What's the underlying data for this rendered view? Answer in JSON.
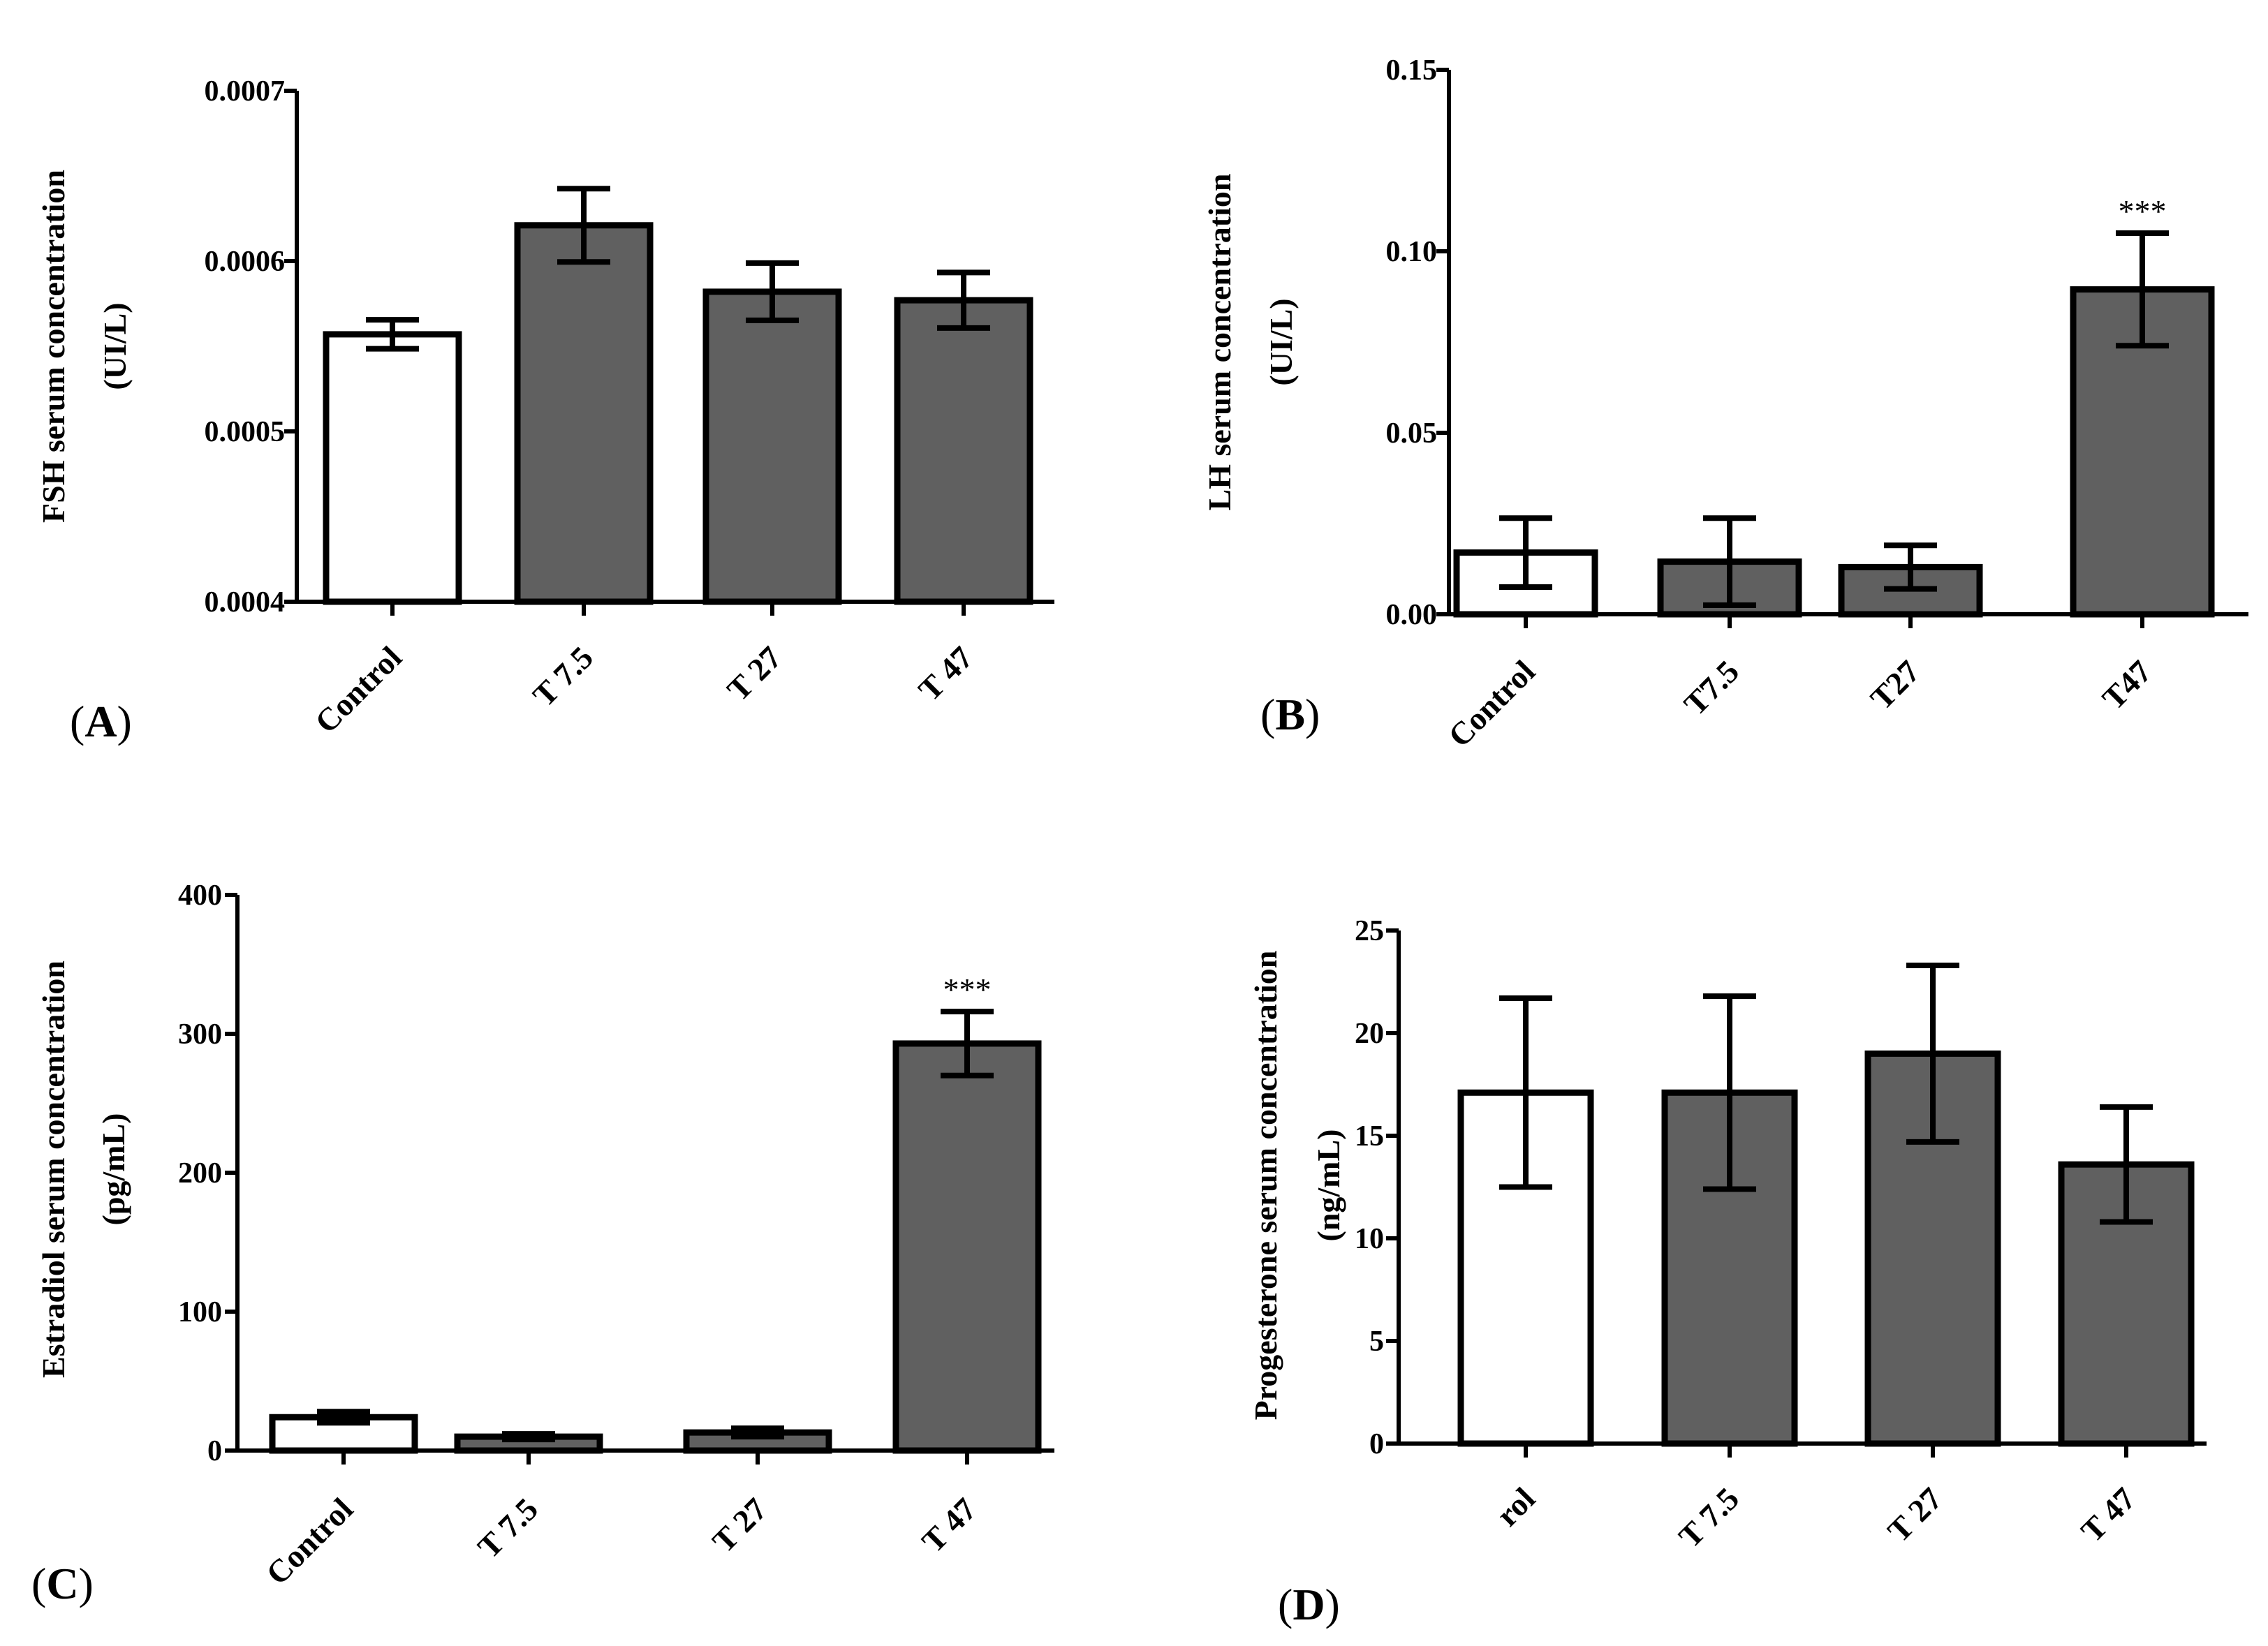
{
  "figure_colors": {
    "control_fill": "#ffffff",
    "treated_fill": "#606060",
    "stroke": "#000000"
  },
  "chart_data": [
    {
      "panel": "(A)",
      "panel_paren_open": "(",
      "panel_letter": "A",
      "panel_paren_close": ")",
      "type": "bar",
      "ylabel": "FSH serum concentration",
      "ylabel_units": "(UI/L)",
      "categories": [
        "Control",
        "T 7.5",
        "T 27",
        "T 47"
      ],
      "values": [
        0.000557,
        0.000621,
        0.000582,
        0.000577
      ],
      "errors": [
        8.5e-06,
        2.15e-05,
        1.68e-05,
        1.63e-05
      ],
      "ylim": [
        0.0004,
        0.0007
      ],
      "yticks": [
        0.0004,
        0.0005,
        0.0006,
        0.0007
      ],
      "ytick_labels": [
        "0.0004",
        "0.0005",
        "0.0006",
        "0.0007"
      ],
      "significance": [
        "",
        "",
        "",
        ""
      ]
    },
    {
      "panel": "(B)",
      "panel_paren_open": "(",
      "panel_letter": "B",
      "panel_paren_close": ")",
      "type": "bar",
      "ylabel": "LH serum concentration",
      "ylabel_units": "(UI/L)",
      "categories": [
        "Control",
        "T7.5",
        "T27",
        "T47"
      ],
      "values": [
        0.017,
        0.0145,
        0.013,
        0.0895
      ],
      "errors": [
        0.0095,
        0.012,
        0.006,
        0.0155
      ],
      "ylim": [
        0,
        0.15
      ],
      "yticks": [
        0,
        0.05,
        0.1,
        0.15
      ],
      "ytick_labels": [
        "0.00",
        "0.05",
        "0.10",
        "0.15"
      ],
      "significance": [
        "",
        "",
        "",
        "***"
      ]
    },
    {
      "panel": "(C)",
      "panel_paren_open": "(",
      "panel_letter": "C",
      "panel_paren_close": ")",
      "type": "bar",
      "ylabel": "Estradiol serum concentration",
      "ylabel_units": "(pg/mL)",
      "categories": [
        "Control",
        "T 7.5",
        "T 27",
        "T 47"
      ],
      "values": [
        24,
        10,
        13,
        293
      ],
      "errors": [
        4,
        2,
        3,
        23
      ],
      "ylim": [
        0,
        400
      ],
      "yticks": [
        0,
        100,
        200,
        300,
        400
      ],
      "ytick_labels": [
        "0",
        "100",
        "200",
        "300",
        "400"
      ],
      "significance": [
        "",
        "",
        "",
        "***"
      ]
    },
    {
      "panel": "(D)",
      "panel_paren_open": "(",
      "panel_letter": "D",
      "panel_paren_close": ")",
      "type": "bar",
      "ylabel": "Progesterone serum concentration",
      "ylabel_units": "(ng/mL)",
      "categories": [
        "rol",
        "T 7.5",
        "T 27",
        "T 47"
      ],
      "values": [
        17.1,
        17.1,
        19.0,
        13.6
      ],
      "errors": [
        4.6,
        4.7,
        4.3,
        2.8
      ],
      "ylim": [
        0,
        25
      ],
      "yticks": [
        0,
        5,
        10,
        15,
        20,
        25
      ],
      "ytick_labels": [
        "0",
        "5",
        "10",
        "15",
        "20",
        "25"
      ],
      "significance": [
        "",
        "",
        "",
        ""
      ]
    }
  ]
}
